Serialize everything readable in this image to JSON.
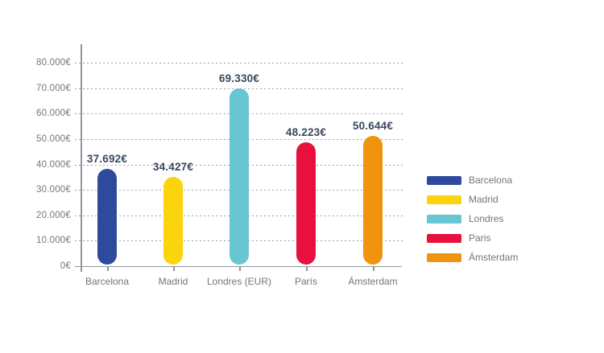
{
  "chart_data": {
    "type": "bar",
    "title": "",
    "xlabel": "",
    "ylabel": "",
    "categories": [
      "Barcelona",
      "Madrid",
      "Londres (EUR)",
      "París",
      "Ámsterdam"
    ],
    "values": [
      37692,
      34427,
      69330,
      48223,
      50644
    ],
    "value_labels": [
      "37.692€",
      "34.427€",
      "69.330€",
      "48.223€",
      "50.644€"
    ],
    "bar_colors": [
      "#2e4a9d",
      "#fbd40e",
      "#68c5d2",
      "#e8103e",
      "#f0930f"
    ],
    "ylim": [
      0,
      80000
    ],
    "y_ticks": [
      {
        "value": 0,
        "label": "0€"
      },
      {
        "value": 10000,
        "label": "10.000€"
      },
      {
        "value": 20000,
        "label": "20.000€"
      },
      {
        "value": 30000,
        "label": "30.000€"
      },
      {
        "value": 40000,
        "label": "40.000€"
      },
      {
        "value": 50000,
        "label": "50.000€"
      },
      {
        "value": 60000,
        "label": "60.000€"
      },
      {
        "value": 70000,
        "label": "70.000€"
      },
      {
        "value": 80000,
        "label": "80.000€"
      }
    ],
    "grid": "horizontal-dotted",
    "legend": {
      "position": "right",
      "entries": [
        {
          "label": "Barcelona",
          "color": "#2e4a9d"
        },
        {
          "label": "Madrid",
          "color": "#fbd40e"
        },
        {
          "label": "Londres",
          "color": "#68c5d2"
        },
        {
          "label": "Paris",
          "color": "#e8103e"
        },
        {
          "label": "Ámsterdam",
          "color": "#f0930f"
        }
      ]
    },
    "colors": {
      "axis": "#8f969e",
      "grid": "#9aa1a8",
      "tick_label": "#6e7780",
      "value_label": "#3a4760",
      "background": "#ffffff"
    }
  }
}
